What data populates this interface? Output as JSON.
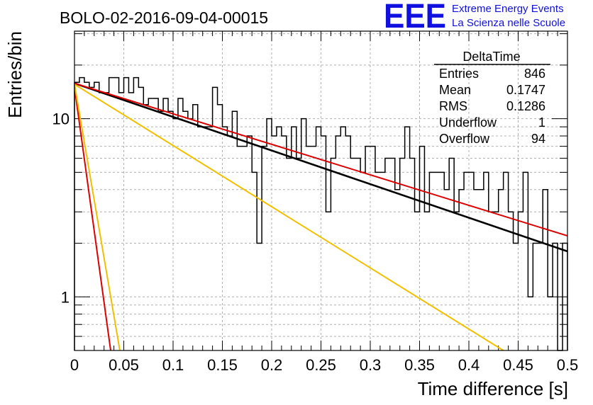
{
  "header": {
    "title": "BOLO-02-2016-09-04-00015",
    "logo_text": "EEE",
    "logo_line1": "Extreme Energy Events",
    "logo_line2": "La Scienza nelle Scuole"
  },
  "stats_box": {
    "title": "DeltaTime",
    "rows": [
      {
        "label": "Entries",
        "value": "846"
      },
      {
        "label": "Mean",
        "value": "0.1747"
      },
      {
        "label": "RMS",
        "value": "0.1286"
      },
      {
        "label": "Underflow",
        "value": "1"
      },
      {
        "label": "Overflow",
        "value": "94"
      }
    ]
  },
  "chart_data": {
    "type": "histogram",
    "title": "BOLO-02-2016-09-04-00015",
    "xlabel": "Time difference [s]",
    "ylabel": "Entries/bin",
    "xlim": [
      0,
      0.5
    ],
    "ylim": [
      0.5,
      31
    ],
    "y_scale": "log",
    "grid": true,
    "x_ticks": [
      {
        "value": 0,
        "label": "0"
      },
      {
        "value": 0.05,
        "label": "0.05"
      },
      {
        "value": 0.1,
        "label": "0.1"
      },
      {
        "value": 0.15,
        "label": "0.15"
      },
      {
        "value": 0.2,
        "label": "0.2"
      },
      {
        "value": 0.25,
        "label": "0.25"
      },
      {
        "value": 0.3,
        "label": "0.3"
      },
      {
        "value": 0.35,
        "label": "0.35"
      },
      {
        "value": 0.4,
        "label": "0.4"
      },
      {
        "value": 0.45,
        "label": "0.45"
      },
      {
        "value": 0.5,
        "label": "0.5"
      }
    ],
    "y_ticks": [
      {
        "value": 1,
        "label": "1"
      },
      {
        "value": 10,
        "label": "10"
      }
    ],
    "bin_width": 0.005,
    "counts": [
      16,
      17,
      16,
      15,
      16,
      14,
      14,
      17,
      17,
      14,
      17,
      14,
      17,
      15,
      12,
      13,
      13,
      11,
      13,
      11,
      10,
      13,
      11,
      10,
      12,
      9,
      9,
      9,
      15,
      12,
      9,
      8,
      11,
      7,
      7,
      8,
      5,
      2,
      7,
      10,
      8,
      9,
      8,
      6,
      9,
      6,
      10,
      7,
      7,
      9,
      8,
      3,
      6,
      8,
      9,
      8,
      6,
      6,
      5,
      7,
      7,
      5,
      5,
      6,
      6,
      4,
      6,
      9,
      6,
      3,
      7,
      3,
      5,
      5,
      5,
      4,
      6,
      3,
      4,
      5,
      5,
      4,
      4,
      5,
      3,
      3,
      4,
      5,
      3,
      2,
      3,
      5,
      1,
      2,
      2,
      4,
      1,
      2,
      0,
      2
    ],
    "series": [
      {
        "type": "line",
        "color": "#000000",
        "points": [
          [
            0.0,
            15.8
          ],
          [
            0.5,
            1.8
          ]
        ]
      },
      {
        "type": "line",
        "color": "#dd0000",
        "points": [
          [
            0.0,
            15.8
          ],
          [
            0.5,
            2.2
          ]
        ]
      },
      {
        "type": "line",
        "color": "#dd0000",
        "points": [
          [
            0.0,
            15.0
          ],
          [
            0.0367,
            0.5
          ]
        ]
      },
      {
        "type": "line",
        "color": "#f0c000",
        "points": [
          [
            0.0,
            15.6
          ],
          [
            0.435,
            0.5
          ]
        ]
      },
      {
        "type": "line",
        "color": "#f0c000",
        "points": [
          [
            0.0,
            15.6
          ],
          [
            0.046,
            0.5
          ]
        ]
      }
    ]
  }
}
